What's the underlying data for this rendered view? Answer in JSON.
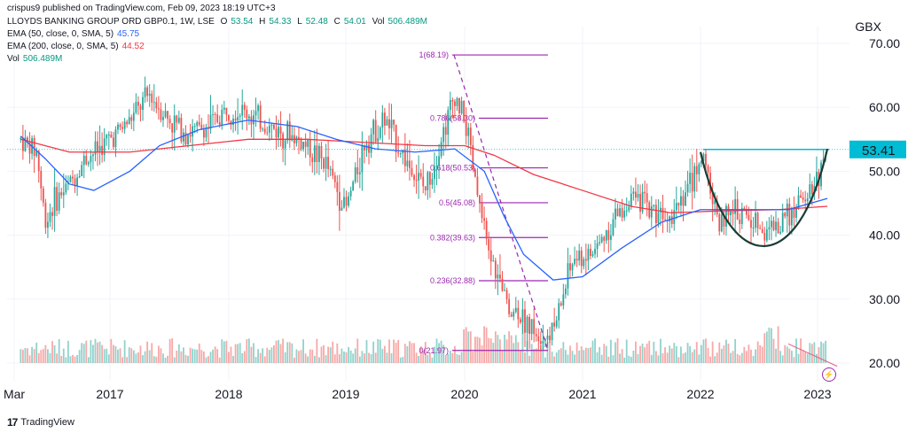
{
  "publisher_line": "crispus9 published on TradingView.com, Feb 09, 2023 18:19 UTC+3",
  "symbol_line": {
    "name": "LLOYDS BANKING GROUP ORD GBP0.1, 1W, LSE",
    "o_label": "O",
    "o": "53.54",
    "h_label": "H",
    "h": "54.33",
    "l_label": "L",
    "l": "52.48",
    "c_label": "C",
    "c": "54.01",
    "vol_label": "Vol",
    "vol": "506.489M"
  },
  "indicators": [
    {
      "label": "EMA (50, close, 0, SMA, 5)",
      "value": "45.75",
      "color": "#2962ff"
    },
    {
      "label": "EMA (200, close, 0, SMA, 5)",
      "value": "44.52",
      "color": "#f23645"
    },
    {
      "label": "Vol",
      "value": "506.489M",
      "color": "#089981"
    }
  ],
  "currency": "GBX",
  "footer": {
    "brand": "TradingView",
    "logo": "17"
  },
  "colors": {
    "up": "#26a69a",
    "down": "#ef5350",
    "ema50": "#2962ff",
    "ema200": "#f23645",
    "fib": "#9c27b0",
    "last_price": "#00bcd4",
    "pattern": "#1a3c34"
  },
  "chart_data": {
    "type": "candlestick",
    "symbol": "LLOYDS BANKING GROUP ORD GBP0.1",
    "interval": "1W",
    "exchange": "LSE",
    "ylim": [
      17,
      72
    ],
    "y_ticks": [
      "70.00",
      "60.00",
      "50.00",
      "40.00",
      "30.00",
      "20.00"
    ],
    "x_ticks": [
      "Mar",
      "2017",
      "2018",
      "2019",
      "2020",
      "2021",
      "2022",
      "2023"
    ],
    "last_price": "53.41",
    "fib_levels": [
      {
        "ratio": "1",
        "price": 68.19,
        "label": "1(68.19)"
      },
      {
        "ratio": "0.786",
        "price": 58.3,
        "label": "0.786(58.30)"
      },
      {
        "ratio": "0.618",
        "price": 50.53,
        "label": "0.618(50.53)"
      },
      {
        "ratio": "0.5",
        "price": 45.08,
        "label": "0.5(45.08)"
      },
      {
        "ratio": "0.382",
        "price": 39.63,
        "label": "0.382(39.63)"
      },
      {
        "ratio": "0.236",
        "price": 32.88,
        "label": "0.236(32.88)"
      },
      {
        "ratio": "0",
        "price": 21.97,
        "label": "0(21.97)"
      }
    ],
    "price_path": [
      [
        "2016-03",
        55
      ],
      [
        "2016-05",
        53
      ],
      [
        "2016-06",
        42
      ],
      [
        "2016-07",
        45
      ],
      [
        "2016-09",
        48
      ],
      [
        "2016-11",
        52
      ],
      [
        "2017-01",
        55
      ],
      [
        "2017-03",
        58
      ],
      [
        "2017-05",
        62
      ],
      [
        "2017-07",
        58
      ],
      [
        "2017-09",
        56
      ],
      [
        "2017-11",
        57
      ],
      [
        "2018-01",
        60
      ],
      [
        "2018-03",
        59
      ],
      [
        "2018-05",
        57
      ],
      [
        "2018-07",
        56
      ],
      [
        "2018-09",
        54
      ],
      [
        "2018-11",
        51
      ],
      [
        "2019-01",
        44
      ],
      [
        "2019-03",
        55
      ],
      [
        "2019-05",
        58
      ],
      [
        "2019-07",
        52
      ],
      [
        "2019-09",
        47
      ],
      [
        "2019-11",
        57
      ],
      [
        "2019-12",
        62
      ],
      [
        "2020-01",
        58
      ],
      [
        "2020-03",
        40
      ],
      [
        "2020-05",
        30
      ],
      [
        "2020-07",
        27
      ],
      [
        "2020-09",
        24
      ],
      [
        "2020-10",
        25
      ],
      [
        "2020-12",
        36
      ],
      [
        "2021-02",
        37
      ],
      [
        "2021-04",
        42
      ],
      [
        "2021-06",
        46
      ],
      [
        "2021-08",
        44
      ],
      [
        "2021-10",
        44
      ],
      [
        "2021-12",
        48
      ],
      [
        "2022-01",
        53
      ],
      [
        "2022-03",
        42
      ],
      [
        "2022-05",
        44
      ],
      [
        "2022-07",
        41
      ],
      [
        "2022-09",
        41
      ],
      [
        "2022-11",
        45
      ],
      [
        "2023-01",
        49
      ],
      [
        "2023-02",
        54
      ]
    ],
    "ema50_path": [
      [
        "2016-03",
        55.5
      ],
      [
        "2016-06",
        52
      ],
      [
        "2016-09",
        48
      ],
      [
        "2016-12",
        47
      ],
      [
        "2017-03",
        50
      ],
      [
        "2017-06",
        54
      ],
      [
        "2017-10",
        56.5
      ],
      [
        "2018-03",
        58
      ],
      [
        "2018-08",
        57
      ],
      [
        "2018-12",
        55
      ],
      [
        "2019-04",
        53.5
      ],
      [
        "2019-08",
        53
      ],
      [
        "2019-12",
        53.5
      ],
      [
        "2020-03",
        50
      ],
      [
        "2020-05",
        43
      ],
      [
        "2020-07",
        37
      ],
      [
        "2020-10",
        33
      ],
      [
        "2021-01",
        33.5
      ],
      [
        "2021-05",
        38
      ],
      [
        "2021-09",
        42
      ],
      [
        "2022-01",
        44
      ],
      [
        "2022-06",
        44
      ],
      [
        "2022-10",
        44
      ],
      [
        "2023-02",
        45.75
      ]
    ],
    "ema200_path": [
      [
        "2016-03",
        55
      ],
      [
        "2016-09",
        53
      ],
      [
        "2017-03",
        53
      ],
      [
        "2017-09",
        54
      ],
      [
        "2018-03",
        55
      ],
      [
        "2018-09",
        55
      ],
      [
        "2019-03",
        54.5
      ],
      [
        "2019-09",
        54
      ],
      [
        "2020-01",
        54
      ],
      [
        "2020-04",
        52.5
      ],
      [
        "2020-08",
        49.5
      ],
      [
        "2021-01",
        47
      ],
      [
        "2021-06",
        44.5
      ],
      [
        "2021-10",
        43.5
      ],
      [
        "2022-03",
        43.8
      ],
      [
        "2022-09",
        44
      ],
      [
        "2023-02",
        44.52
      ]
    ],
    "resistance_price": 53.41,
    "cup_pattern": [
      [
        "2022-01",
        53
      ],
      [
        "2022-04",
        45
      ],
      [
        "2022-08",
        40
      ],
      [
        "2022-11",
        43
      ],
      [
        "2023-02",
        53.5
      ]
    ],
    "volume_trend_line": [
      [
        "2022-10",
        23
      ],
      [
        "2023-03",
        19.5
      ]
    ]
  }
}
